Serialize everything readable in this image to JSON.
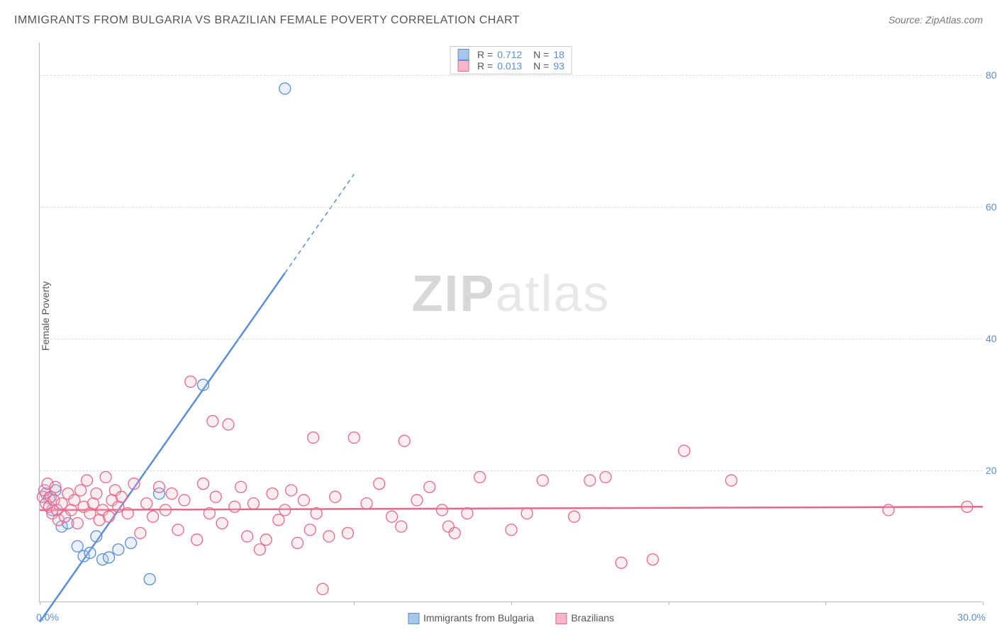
{
  "title": "IMMIGRANTS FROM BULGARIA VS BRAZILIAN FEMALE POVERTY CORRELATION CHART",
  "source": "Source: ZipAtlas.com",
  "ylabel": "Female Poverty",
  "watermark_zip": "ZIP",
  "watermark_atlas": "atlas",
  "chart": {
    "type": "scatter",
    "xlim": [
      0,
      30
    ],
    "ylim": [
      0,
      85
    ],
    "xticks": [
      0,
      5,
      10,
      15,
      20,
      25,
      30
    ],
    "yticks": [
      20,
      40,
      60,
      80
    ],
    "x_origin_label": "0.0%",
    "x_max_label": "30.0%",
    "ytick_labels": [
      "20.0%",
      "40.0%",
      "60.0%",
      "80.0%"
    ],
    "grid_color": "#dddddd",
    "axis_color": "#bbbbbb",
    "background_color": "#ffffff",
    "label_fontsize": 14,
    "title_fontsize": 16,
    "tick_color": "#5b8dd6",
    "marker_radius": 8,
    "marker_stroke_width": 1.3,
    "marker_fill_opacity": 0.25,
    "series": [
      {
        "key": "bulgaria",
        "label": "Immigrants from Bulgaria",
        "color": "#5b8dd6",
        "fill": "#a8c5ea",
        "R": "0.712",
        "N": "18",
        "trend": {
          "x1": 0,
          "y1": -3,
          "x2": 7.8,
          "y2": 50,
          "dash_from_x": 7.8,
          "dash_to_x": 10,
          "dash_to_y": 65
        },
        "points": [
          [
            0.2,
            16.5
          ],
          [
            0.3,
            15.8
          ],
          [
            0.4,
            14.0
          ],
          [
            0.5,
            17.0
          ],
          [
            0.7,
            11.5
          ],
          [
            0.9,
            12.0
          ],
          [
            1.2,
            8.5
          ],
          [
            1.4,
            7.0
          ],
          [
            1.6,
            7.5
          ],
          [
            1.8,
            10.0
          ],
          [
            2.0,
            6.5
          ],
          [
            2.2,
            6.8
          ],
          [
            2.5,
            8.0
          ],
          [
            2.9,
            9.0
          ],
          [
            3.5,
            3.5
          ],
          [
            3.8,
            16.5
          ],
          [
            5.2,
            33.0
          ],
          [
            7.8,
            78.0
          ]
        ]
      },
      {
        "key": "brazilians",
        "label": "Brazilians",
        "color": "#e8678b",
        "fill": "#f5b8c9",
        "R": "0.013",
        "N": "93",
        "trend": {
          "x1": 0,
          "y1": 14.0,
          "x2": 30,
          "y2": 14.5
        },
        "points": [
          [
            0.1,
            16.0
          ],
          [
            0.15,
            17.0
          ],
          [
            0.2,
            15.0
          ],
          [
            0.25,
            18.0
          ],
          [
            0.3,
            14.5
          ],
          [
            0.35,
            16.0
          ],
          [
            0.4,
            13.5
          ],
          [
            0.45,
            15.5
          ],
          [
            0.5,
            17.5
          ],
          [
            0.55,
            14.0
          ],
          [
            0.6,
            12.5
          ],
          [
            0.7,
            15.0
          ],
          [
            0.8,
            13.0
          ],
          [
            0.9,
            16.5
          ],
          [
            1.0,
            14.0
          ],
          [
            1.1,
            15.5
          ],
          [
            1.2,
            12.0
          ],
          [
            1.3,
            17.0
          ],
          [
            1.4,
            14.5
          ],
          [
            1.5,
            18.5
          ],
          [
            1.6,
            13.5
          ],
          [
            1.7,
            15.0
          ],
          [
            1.8,
            16.5
          ],
          [
            1.9,
            12.5
          ],
          [
            2.0,
            14.0
          ],
          [
            2.1,
            19.0
          ],
          [
            2.2,
            13.0
          ],
          [
            2.3,
            15.5
          ],
          [
            2.4,
            17.0
          ],
          [
            2.5,
            14.5
          ],
          [
            2.6,
            16.0
          ],
          [
            2.8,
            13.5
          ],
          [
            3.0,
            18.0
          ],
          [
            3.2,
            10.5
          ],
          [
            3.4,
            15.0
          ],
          [
            3.6,
            13.0
          ],
          [
            3.8,
            17.5
          ],
          [
            4.0,
            14.0
          ],
          [
            4.2,
            16.5
          ],
          [
            4.4,
            11.0
          ],
          [
            4.6,
            15.5
          ],
          [
            4.8,
            33.5
          ],
          [
            5.0,
            9.5
          ],
          [
            5.2,
            18.0
          ],
          [
            5.4,
            13.5
          ],
          [
            5.5,
            27.5
          ],
          [
            5.6,
            16.0
          ],
          [
            5.8,
            12.0
          ],
          [
            6.0,
            27.0
          ],
          [
            6.2,
            14.5
          ],
          [
            6.4,
            17.5
          ],
          [
            6.6,
            10.0
          ],
          [
            6.8,
            15.0
          ],
          [
            7.0,
            8.0
          ],
          [
            7.2,
            9.5
          ],
          [
            7.4,
            16.5
          ],
          [
            7.6,
            12.5
          ],
          [
            7.8,
            14.0
          ],
          [
            8.0,
            17.0
          ],
          [
            8.2,
            9.0
          ],
          [
            8.4,
            15.5
          ],
          [
            8.6,
            11.0
          ],
          [
            8.7,
            25.0
          ],
          [
            8.8,
            13.5
          ],
          [
            9.0,
            2.0
          ],
          [
            9.2,
            10.0
          ],
          [
            9.4,
            16.0
          ],
          [
            9.8,
            10.5
          ],
          [
            10.0,
            25.0
          ],
          [
            10.4,
            15.0
          ],
          [
            10.8,
            18.0
          ],
          [
            11.2,
            13.0
          ],
          [
            11.5,
            11.5
          ],
          [
            11.6,
            24.5
          ],
          [
            12.0,
            15.5
          ],
          [
            12.4,
            17.5
          ],
          [
            12.8,
            14.0
          ],
          [
            13.0,
            11.5
          ],
          [
            13.2,
            10.5
          ],
          [
            13.6,
            13.5
          ],
          [
            14.0,
            19.0
          ],
          [
            15.0,
            11.0
          ],
          [
            15.5,
            13.5
          ],
          [
            16.0,
            18.5
          ],
          [
            17.0,
            13.0
          ],
          [
            17.5,
            18.5
          ],
          [
            18.0,
            19.0
          ],
          [
            18.5,
            6.0
          ],
          [
            19.5,
            6.5
          ],
          [
            20.5,
            23.0
          ],
          [
            22.0,
            18.5
          ],
          [
            27.0,
            14.0
          ],
          [
            29.5,
            14.5
          ]
        ]
      }
    ]
  },
  "top_legend_prefix_R": "R  =",
  "top_legend_prefix_N": "N  ="
}
